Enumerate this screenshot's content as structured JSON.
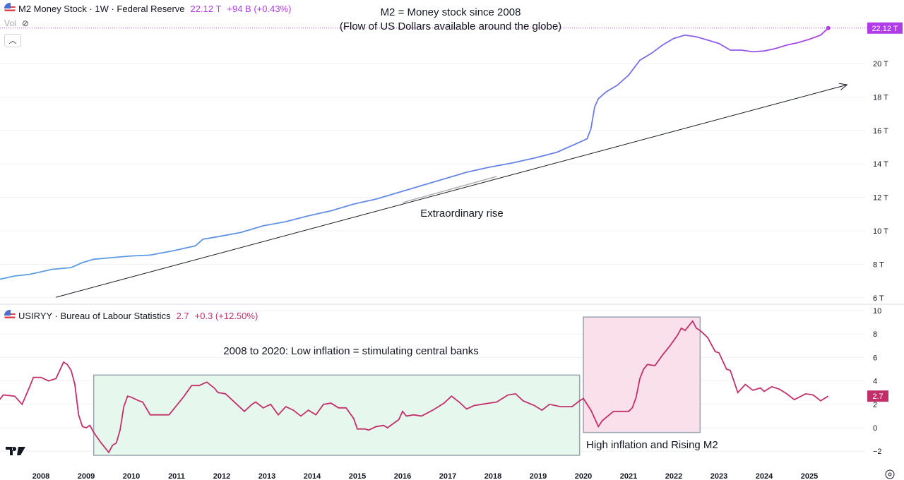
{
  "header_top": {
    "title": "M2 Money Stock · 1W · Federal Reserve",
    "value": "22.12 T",
    "change": "+94 B (+0.43%)",
    "vol_label": "Vol",
    "vol_icon": "eye-hidden-icon",
    "color": "#b13be8"
  },
  "header_bottom": {
    "title": "USIRYY · Bureau of Labour Statistics",
    "value": "2.7",
    "change": "+0.3 (+12.50%)",
    "color": "#c2306a"
  },
  "collapse_icon": "chevron-up-icon",
  "chart_data": [
    {
      "type": "line",
      "name": "M2 Money Stock",
      "unit": "T",
      "ylim": [
        6,
        22.5
      ],
      "yticks": [
        "20 T",
        "18 T",
        "16 T",
        "14 T",
        "12 T",
        "10 T",
        "8 T",
        "6 T"
      ],
      "last_value_label": "22.12 T",
      "colors": {
        "start": "#5ba0e0",
        "mid": "#6a7ee8",
        "end": "#b03fe6"
      },
      "points": [
        [
          "2007-02",
          7.1
        ],
        [
          "2007-06",
          7.3
        ],
        [
          "2007-10",
          7.4
        ],
        [
          "2008-01",
          7.55
        ],
        [
          "2008-04",
          7.7
        ],
        [
          "2008-09",
          7.8
        ],
        [
          "2008-12",
          8.1
        ],
        [
          "2009-03",
          8.3
        ],
        [
          "2009-08",
          8.4
        ],
        [
          "2010-01",
          8.5
        ],
        [
          "2010-06",
          8.55
        ],
        [
          "2010-12",
          8.8
        ],
        [
          "2011-06",
          9.1
        ],
        [
          "2011-08",
          9.5
        ],
        [
          "2011-12",
          9.65
        ],
        [
          "2012-06",
          9.9
        ],
        [
          "2012-12",
          10.3
        ],
        [
          "2013-06",
          10.55
        ],
        [
          "2013-12",
          10.9
        ],
        [
          "2014-06",
          11.2
        ],
        [
          "2014-12",
          11.6
        ],
        [
          "2015-06",
          11.9
        ],
        [
          "2015-12",
          12.3
        ],
        [
          "2016-06",
          12.7
        ],
        [
          "2016-12",
          13.1
        ],
        [
          "2017-06",
          13.5
        ],
        [
          "2017-12",
          13.8
        ],
        [
          "2018-06",
          14.05
        ],
        [
          "2018-12",
          14.35
        ],
        [
          "2019-06",
          14.7
        ],
        [
          "2019-12",
          15.3
        ],
        [
          "2020-02",
          15.5
        ],
        [
          "2020-03",
          16.1
        ],
        [
          "2020-04",
          17.4
        ],
        [
          "2020-05",
          17.9
        ],
        [
          "2020-07",
          18.3
        ],
        [
          "2020-10",
          18.7
        ],
        [
          "2021-01",
          19.3
        ],
        [
          "2021-04",
          20.2
        ],
        [
          "2021-07",
          20.6
        ],
        [
          "2021-10",
          21.1
        ],
        [
          "2022-01",
          21.5
        ],
        [
          "2022-04",
          21.7
        ],
        [
          "2022-07",
          21.6
        ],
        [
          "2022-10",
          21.4
        ],
        [
          "2023-01",
          21.2
        ],
        [
          "2023-04",
          20.8
        ],
        [
          "2023-07",
          20.8
        ],
        [
          "2023-10",
          20.7
        ],
        [
          "2024-01",
          20.75
        ],
        [
          "2024-04",
          20.9
        ],
        [
          "2024-07",
          21.1
        ],
        [
          "2024-10",
          21.25
        ],
        [
          "2025-01",
          21.45
        ],
        [
          "2025-04",
          21.7
        ],
        [
          "2025-06",
          22.12
        ]
      ],
      "annotations": {
        "title_lines": [
          "M2 = Money stock since 2008",
          "(Flow of US Dollars available around the globe)"
        ],
        "trend_arrow": {
          "from": [
            "2008-05",
            6.03
          ],
          "to": [
            "2025-11",
            18.73
          ],
          "color": "#131722"
        },
        "highlight_segment": {
          "from": [
            "2016-01",
            11.69
          ],
          "to": [
            "2018-02",
            13.25
          ],
          "color": "#b0b0b0"
        },
        "label": "Extraordinary rise"
      }
    },
    {
      "type": "line",
      "name": "USIRYY",
      "ylim": [
        -2.5,
        10
      ],
      "yticks": [
        "10",
        "8",
        "6",
        "4",
        "2",
        "0",
        "−2"
      ],
      "last_value_label": "2.7",
      "color": "#c2306a",
      "points": [
        [
          "2007-02",
          2.4
        ],
        [
          "2007-03",
          2.8
        ],
        [
          "2007-06",
          2.7
        ],
        [
          "2007-08",
          2.0
        ],
        [
          "2007-10",
          3.5
        ],
        [
          "2007-11",
          4.3
        ],
        [
          "2008-01",
          4.3
        ],
        [
          "2008-03",
          4.0
        ],
        [
          "2008-05",
          4.2
        ],
        [
          "2008-07",
          5.6
        ],
        [
          "2008-08",
          5.4
        ],
        [
          "2008-09",
          4.9
        ],
        [
          "2008-10",
          3.7
        ],
        [
          "2008-11",
          1.1
        ],
        [
          "2008-12",
          0.1
        ],
        [
          "2009-01",
          0.0
        ],
        [
          "2009-02",
          0.2
        ],
        [
          "2009-03",
          -0.4
        ],
        [
          "2009-05",
          -1.3
        ],
        [
          "2009-07",
          -2.1
        ],
        [
          "2009-08",
          -1.5
        ],
        [
          "2009-09",
          -1.3
        ],
        [
          "2009-10",
          -0.2
        ],
        [
          "2009-11",
          1.8
        ],
        [
          "2009-12",
          2.7
        ],
        [
          "2010-01",
          2.6
        ],
        [
          "2010-03",
          2.3
        ],
        [
          "2010-04",
          2.2
        ],
        [
          "2010-06",
          1.1
        ],
        [
          "2010-09",
          1.1
        ],
        [
          "2010-11",
          1.1
        ],
        [
          "2010-12",
          1.5
        ],
        [
          "2011-03",
          2.7
        ],
        [
          "2011-05",
          3.6
        ],
        [
          "2011-07",
          3.6
        ],
        [
          "2011-09",
          3.9
        ],
        [
          "2011-11",
          3.4
        ],
        [
          "2011-12",
          3.0
        ],
        [
          "2012-02",
          2.9
        ],
        [
          "2012-04",
          2.3
        ],
        [
          "2012-06",
          1.7
        ],
        [
          "2012-07",
          1.4
        ],
        [
          "2012-09",
          2.0
        ],
        [
          "2012-10",
          2.2
        ],
        [
          "2012-12",
          1.7
        ],
        [
          "2013-02",
          2.0
        ],
        [
          "2013-04",
          1.1
        ],
        [
          "2013-06",
          1.8
        ],
        [
          "2013-08",
          1.5
        ],
        [
          "2013-10",
          1.0
        ],
        [
          "2013-12",
          1.5
        ],
        [
          "2014-02",
          1.1
        ],
        [
          "2014-04",
          2.0
        ],
        [
          "2014-06",
          2.1
        ],
        [
          "2014-08",
          1.7
        ],
        [
          "2014-10",
          1.7
        ],
        [
          "2014-12",
          0.8
        ],
        [
          "2015-01",
          -0.1
        ],
        [
          "2015-03",
          -0.1
        ],
        [
          "2015-04",
          -0.2
        ],
        [
          "2015-06",
          0.1
        ],
        [
          "2015-08",
          0.2
        ],
        [
          "2015-09",
          0.0
        ],
        [
          "2015-12",
          0.7
        ],
        [
          "2016-01",
          1.4
        ],
        [
          "2016-02",
          1.0
        ],
        [
          "2016-04",
          1.1
        ],
        [
          "2016-06",
          1.0
        ],
        [
          "2016-09",
          1.5
        ],
        [
          "2016-12",
          2.1
        ],
        [
          "2017-02",
          2.7
        ],
        [
          "2017-04",
          2.2
        ],
        [
          "2017-06",
          1.6
        ],
        [
          "2017-08",
          1.9
        ],
        [
          "2017-10",
          2.0
        ],
        [
          "2017-12",
          2.1
        ],
        [
          "2018-02",
          2.2
        ],
        [
          "2018-05",
          2.8
        ],
        [
          "2018-07",
          2.9
        ],
        [
          "2018-09",
          2.3
        ],
        [
          "2018-12",
          1.9
        ],
        [
          "2019-02",
          1.5
        ],
        [
          "2019-04",
          2.0
        ],
        [
          "2019-07",
          1.8
        ],
        [
          "2019-10",
          1.8
        ],
        [
          "2019-12",
          2.3
        ],
        [
          "2020-01",
          2.5
        ],
        [
          "2020-03",
          1.5
        ],
        [
          "2020-05",
          0.1
        ],
        [
          "2020-06",
          0.6
        ],
        [
          "2020-09",
          1.4
        ],
        [
          "2020-12",
          1.4
        ],
        [
          "2021-01",
          1.4
        ],
        [
          "2021-02",
          1.7
        ],
        [
          "2021-03",
          2.6
        ],
        [
          "2021-04",
          4.2
        ],
        [
          "2021-05",
          5.0
        ],
        [
          "2021-06",
          5.4
        ],
        [
          "2021-08",
          5.3
        ],
        [
          "2021-10",
          6.2
        ],
        [
          "2021-12",
          7.0
        ],
        [
          "2022-02",
          7.9
        ],
        [
          "2022-03",
          8.5
        ],
        [
          "2022-04",
          8.3
        ],
        [
          "2022-06",
          9.1
        ],
        [
          "2022-07",
          8.5
        ],
        [
          "2022-08",
          8.3
        ],
        [
          "2022-10",
          7.7
        ],
        [
          "2022-12",
          6.5
        ],
        [
          "2023-01",
          6.4
        ],
        [
          "2023-03",
          5.0
        ],
        [
          "2023-04",
          4.9
        ],
        [
          "2023-06",
          3.0
        ],
        [
          "2023-08",
          3.7
        ],
        [
          "2023-10",
          3.2
        ],
        [
          "2023-12",
          3.4
        ],
        [
          "2024-01",
          3.1
        ],
        [
          "2024-03",
          3.5
        ],
        [
          "2024-05",
          3.3
        ],
        [
          "2024-07",
          2.9
        ],
        [
          "2024-09",
          2.4
        ],
        [
          "2024-12",
          2.9
        ],
        [
          "2025-02",
          2.8
        ],
        [
          "2025-04",
          2.3
        ],
        [
          "2025-06",
          2.7
        ]
      ],
      "annotations": {
        "low_box": {
          "from": [
            "2009-03",
            4.5
          ],
          "to": [
            "2019-12",
            -2.35
          ],
          "fill": "#e6f7ee",
          "border": "#9aa3b0",
          "label": "2008 to 2020: Low inflation = stimulating central banks"
        },
        "high_box": {
          "from": [
            "2020-01",
            9.45
          ],
          "to": [
            "2022-08",
            -0.4
          ],
          "fill": "#f9e0ea",
          "border": "#9aa3b0",
          "label": "High inflation and Rising M2"
        }
      }
    }
  ],
  "x_axis": {
    "ticks": [
      "2008",
      "2009",
      "2010",
      "2011",
      "2012",
      "2013",
      "2014",
      "2015",
      "2016",
      "2017",
      "2018",
      "2019",
      "2020",
      "2021",
      "2022",
      "2023",
      "2024",
      "2025"
    ]
  },
  "settings_icon": "settings-icon",
  "logo": "TV"
}
